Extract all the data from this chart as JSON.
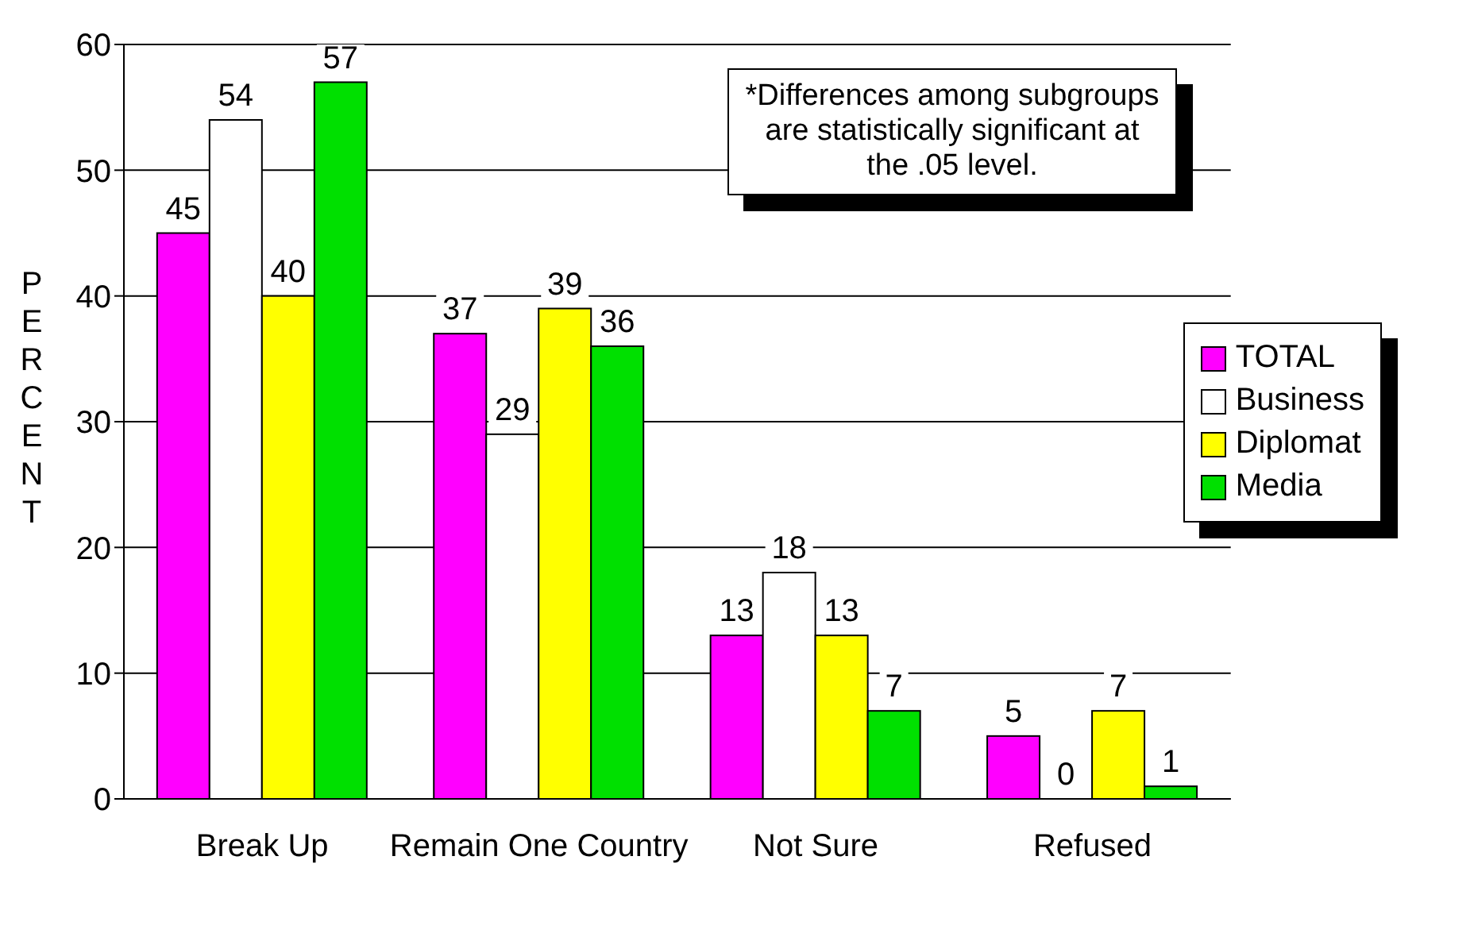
{
  "chart_data": {
    "type": "bar",
    "ylabel": "PERCENT",
    "categories": [
      "Break Up",
      "Remain One Country",
      "Not Sure",
      "Refused"
    ],
    "series": [
      {
        "name": "TOTAL",
        "color": "#ff00ff",
        "values": [
          45,
          37,
          13,
          5
        ]
      },
      {
        "name": "Business",
        "color": "#ffffff",
        "values": [
          54,
          29,
          18,
          0
        ]
      },
      {
        "name": "Diplomat",
        "color": "#ffff00",
        "values": [
          40,
          39,
          13,
          7
        ]
      },
      {
        "name": "Media",
        "color": "#00e000",
        "values": [
          57,
          36,
          7,
          1
        ]
      }
    ],
    "ylim": [
      0,
      60
    ],
    "yticks": [
      0,
      10,
      20,
      30,
      40,
      50,
      60
    ],
    "grid": "y",
    "legend": "right",
    "data_labels": true,
    "annotations": [
      "*Differences among subgroups are statistically significant at the .05 level."
    ]
  }
}
